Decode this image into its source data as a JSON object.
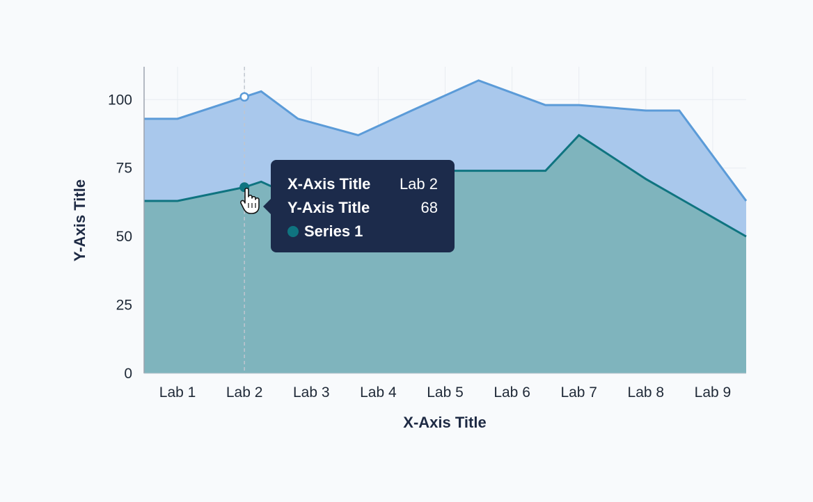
{
  "chart_data": {
    "type": "area",
    "categories": [
      "Lab 1",
      "Lab 2",
      "Lab 3",
      "Lab 4",
      "Lab 5",
      "Lab 6",
      "Lab 7",
      "Lab 8",
      "Lab 9"
    ],
    "series": [
      {
        "name": "Series 1",
        "x": [
          0.5,
          1.5,
          1.75,
          2.3,
          3.2,
          4.0,
          5.0,
          6.0,
          6.5,
          7.5,
          8.0,
          9.0
        ],
        "y": [
          63,
          68,
          70,
          64,
          61,
          74,
          74,
          74,
          87,
          71,
          64,
          50
        ],
        "color": "#0f7480",
        "fill": "#7fb4bd"
      },
      {
        "x": [
          0.5,
          1.5,
          1.75,
          2.3,
          3.2,
          4.0,
          5.0,
          6.0,
          6.5,
          7.5,
          8.0,
          9.0
        ],
        "y": [
          93,
          101,
          103,
          93,
          87,
          96,
          107,
          98,
          98,
          96,
          96,
          63
        ],
        "color": "#5b9bd8",
        "fill": "#a9c8ec"
      }
    ],
    "xlabel": "X-Axis Title",
    "ylabel": "Y-Axis Title",
    "ylim": [
      0,
      112
    ],
    "yticks": [
      0,
      25,
      50,
      75,
      100
    ],
    "grid": true,
    "hover": {
      "category_index": 1,
      "value": 68
    }
  },
  "tooltip": {
    "x_key": "X-Axis Title",
    "x_value": "Lab 2",
    "y_key": "Y-Axis Title",
    "y_value": "68",
    "series_name": "Series 1",
    "series_color": "#0f7480"
  }
}
